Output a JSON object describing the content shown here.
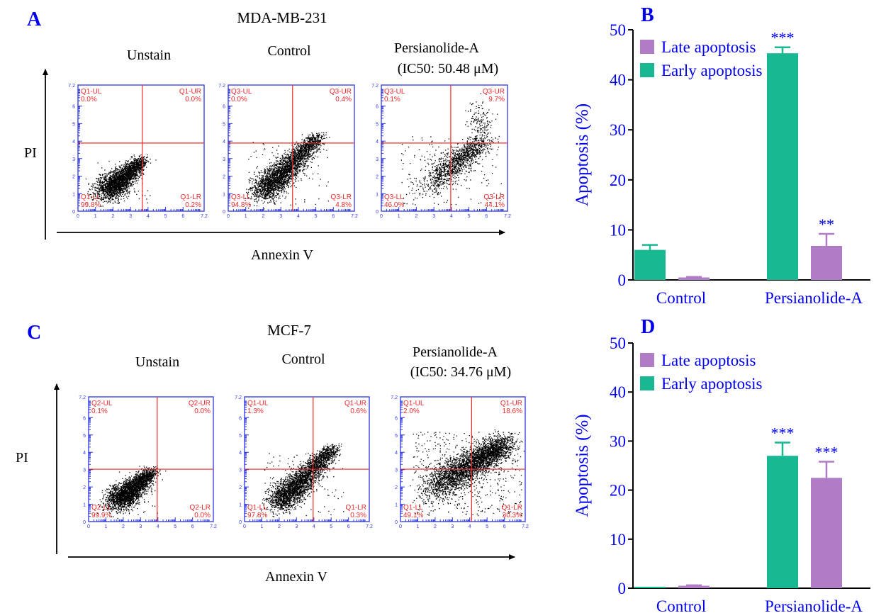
{
  "panels": {
    "A": {
      "letter": "A",
      "cell_line": "MDA-MB-231",
      "y_axis_label": "PI",
      "x_axis_label": "Annexin V",
      "tick_labels": [
        "0",
        "1",
        "2",
        "3",
        "4",
        "5",
        "6",
        "7.2"
      ],
      "plots": [
        {
          "title": "Unstain",
          "subtitle": "",
          "gate": "Q1",
          "quadrants": {
            "UL": "0.0%",
            "UR": "0.0%",
            "LL": "99.8%",
            "LR": "0.2%"
          }
        },
        {
          "title": "Control",
          "subtitle": "",
          "gate": "Q3",
          "quadrants": {
            "UL": "0.0%",
            "UR": "0.4%",
            "LL": "94.8%",
            "LR": "4.8%"
          }
        },
        {
          "title": "Persianolide-A",
          "subtitle": "(IC50: 50.48 μM)",
          "gate": "Q3",
          "quadrants": {
            "UL": "0.1%",
            "UR": "9.7%",
            "LL": "46.0%",
            "LR": "44.1%"
          }
        }
      ]
    },
    "C": {
      "letter": "C",
      "cell_line": "MCF-7",
      "y_axis_label": "PI",
      "x_axis_label": "Annexin V",
      "tick_labels": [
        "0",
        "1",
        "2",
        "3",
        "4",
        "5",
        "6",
        "7.2"
      ],
      "plots": [
        {
          "title": "Unstain",
          "subtitle": "",
          "gate": "Q2",
          "quadrants": {
            "UL": "0.1%",
            "UR": "0.0%",
            "LL": "99.9%",
            "LR": "0.0%"
          }
        },
        {
          "title": "Control",
          "subtitle": "",
          "gate": "Q1",
          "quadrants": {
            "UL": "1.3%",
            "UR": "0.6%",
            "LL": "97.8%",
            "LR": "0.3%"
          }
        },
        {
          "title": "Persianolide-A",
          "subtitle": "(IC50: 34.76 μM)",
          "gate": "Q1",
          "quadrants": {
            "UL": "2.0%",
            "UR": "18.6%",
            "LL": "49.1%",
            "LR": "30.3%"
          }
        }
      ]
    }
  },
  "colors": {
    "early": "#17b892",
    "late": "#b07cc6",
    "axis": "#0000ee",
    "quad_text": "#ee2a2a",
    "quad_line": "#ee2a2a",
    "frame": "#2d35e0"
  },
  "chart_data": [
    {
      "panel": "B",
      "type": "bar",
      "title": "",
      "categories": [
        "Control",
        "Persianolide-A"
      ],
      "series": [
        {
          "name": "Early apoptosis",
          "values": [
            6.0,
            45.3
          ],
          "errors": [
            1.0,
            1.2
          ],
          "significance": [
            "",
            "***"
          ]
        },
        {
          "name": "Late apoptosis",
          "values": [
            0.5,
            6.8
          ],
          "errors": [
            0.1,
            2.4
          ],
          "significance": [
            "",
            "**"
          ]
        }
      ],
      "legend_order": [
        "Late apoptosis",
        "Early apoptosis"
      ],
      "legend_position": "top-left",
      "ylabel": "Apoptosis (%)",
      "xlabel": "",
      "ylim": [
        0,
        50
      ],
      "yticks": [
        0,
        10,
        20,
        30,
        40,
        50
      ],
      "grid": false
    },
    {
      "panel": "D",
      "type": "bar",
      "title": "",
      "categories": [
        "Control",
        "Persianolide-A"
      ],
      "series": [
        {
          "name": "Early apoptosis",
          "values": [
            0.3,
            27.0
          ],
          "errors": [
            0.0,
            2.7
          ],
          "significance": [
            "",
            "***"
          ]
        },
        {
          "name": "Late apoptosis",
          "values": [
            0.5,
            22.5
          ],
          "errors": [
            0.1,
            3.3
          ],
          "significance": [
            "",
            "***"
          ]
        }
      ],
      "legend_order": [
        "Late apoptosis",
        "Early apoptosis"
      ],
      "legend_position": "top-left",
      "ylabel": "Apoptosis (%)",
      "xlabel": "",
      "ylim": [
        0,
        50
      ],
      "yticks": [
        0,
        10,
        20,
        30,
        40,
        50
      ],
      "grid": false
    }
  ]
}
